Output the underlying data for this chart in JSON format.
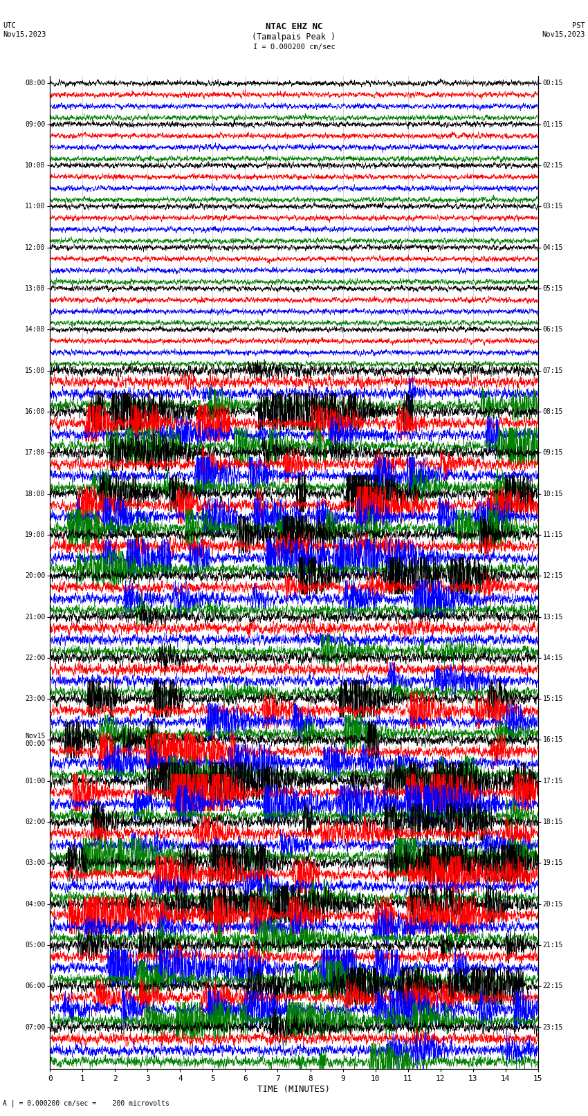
{
  "title_line1": "NTAC EHZ NC",
  "title_line2": "(Tamalpais Peak )",
  "scale_text": "I = 0.000200 cm/sec",
  "footer_text": "A | = 0.000200 cm/sec =    200 microvolts",
  "xlabel": "TIME (MINUTES)",
  "utc_label": "UTC\nNov15,2023",
  "pst_label": "PST\nNov15,2023",
  "left_times": [
    "08:00",
    "09:00",
    "10:00",
    "11:00",
    "12:00",
    "13:00",
    "14:00",
    "15:00",
    "16:00",
    "17:00",
    "18:00",
    "19:00",
    "20:00",
    "21:00",
    "22:00",
    "23:00",
    "Nov15\n00:00",
    "01:00",
    "02:00",
    "03:00",
    "04:00",
    "05:00",
    "06:00",
    "07:00"
  ],
  "right_times": [
    "00:15",
    "01:15",
    "02:15",
    "03:15",
    "04:15",
    "05:15",
    "06:15",
    "07:15",
    "08:15",
    "09:15",
    "10:15",
    "11:15",
    "12:15",
    "13:15",
    "14:15",
    "15:15",
    "16:15",
    "17:15",
    "18:15",
    "19:15",
    "20:15",
    "21:15",
    "22:15",
    "23:15"
  ],
  "n_rows": 24,
  "n_traces_per_row": 4,
  "colors": [
    "black",
    "red",
    "blue",
    "green"
  ],
  "bg_color": "white",
  "grid_color": "#999999",
  "x_min": 0,
  "x_max": 15,
  "seed": 42,
  "active_rows": [
    7,
    8,
    9,
    10,
    11,
    12,
    13,
    14,
    15,
    16,
    17,
    18,
    19,
    20,
    21,
    22,
    23
  ],
  "high_activity_rows": [
    8,
    9,
    10,
    11,
    12,
    15,
    16,
    17,
    18,
    19,
    20,
    21,
    22
  ],
  "quiet_rows": [
    0,
    1,
    2,
    3,
    4,
    5,
    6
  ]
}
